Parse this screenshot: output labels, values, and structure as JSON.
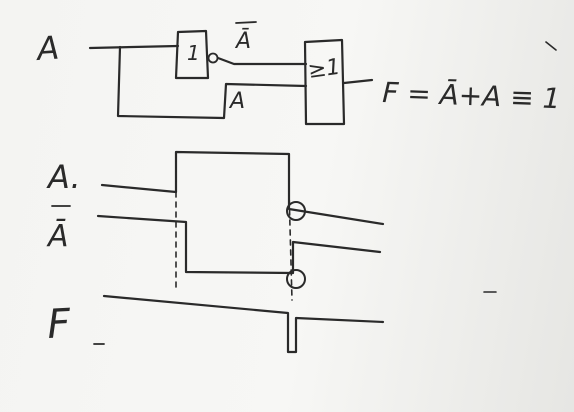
{
  "colors": {
    "ink": "#2a2a2a",
    "board": "#f5f5f3"
  },
  "circuit": {
    "input_label": "A",
    "not_gate_symbol": "1",
    "not_output_label": "Ā",
    "or_input_label": "A",
    "or_gate_symbol": "≥1",
    "output_equation": "F = Ā+A ≡ 1"
  },
  "timing": {
    "signal_a_label": "A.",
    "signal_a_bar_label": "Ā",
    "signal_f_label": "F"
  }
}
